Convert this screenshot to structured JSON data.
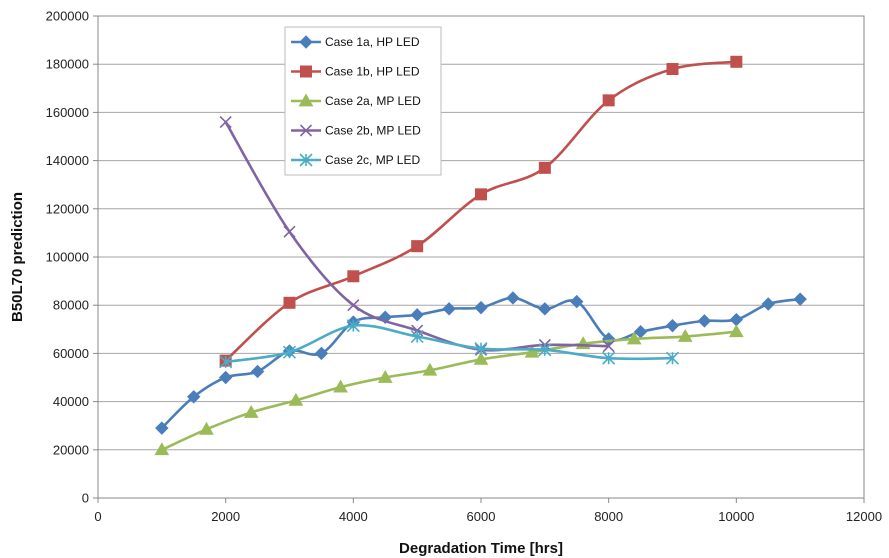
{
  "chart_data": {
    "type": "line",
    "title": "",
    "xlabel": "Degradation Time [hrs]",
    "ylabel": "B50L70 prediction",
    "xlim": [
      0,
      12000
    ],
    "ylim": [
      0,
      200000
    ],
    "x_ticks": [
      0,
      2000,
      4000,
      6000,
      8000,
      10000,
      12000
    ],
    "y_ticks": [
      0,
      20000,
      40000,
      60000,
      80000,
      100000,
      120000,
      140000,
      160000,
      180000,
      200000
    ],
    "grid": "horizontal",
    "legend_position": "top-left",
    "series": [
      {
        "name": "Case 1a, HP LED",
        "color": "#4a7ebb",
        "marker": "diamond",
        "points": [
          [
            1000,
            29000
          ],
          [
            1500,
            42000
          ],
          [
            2000,
            50000
          ],
          [
            2500,
            52500
          ],
          [
            3000,
            61000
          ],
          [
            3500,
            60000
          ],
          [
            4000,
            73000
          ],
          [
            4500,
            75000
          ],
          [
            5000,
            76000
          ],
          [
            5500,
            78500
          ],
          [
            6000,
            79000
          ],
          [
            6500,
            83000
          ],
          [
            7000,
            78500
          ],
          [
            7500,
            81500
          ],
          [
            8000,
            66000
          ],
          [
            8500,
            69000
          ],
          [
            9000,
            71500
          ],
          [
            9500,
            73500
          ],
          [
            10000,
            74000
          ],
          [
            10500,
            80500
          ],
          [
            11000,
            82500
          ]
        ]
      },
      {
        "name": "Case 1b, HP LED",
        "color": "#c0504d",
        "marker": "square",
        "points": [
          [
            2000,
            57000
          ],
          [
            3000,
            81000
          ],
          [
            4000,
            92000
          ],
          [
            5000,
            104500
          ],
          [
            6000,
            126000
          ],
          [
            7000,
            137000
          ],
          [
            8000,
            165000
          ],
          [
            9000,
            178000
          ],
          [
            10000,
            181000
          ]
        ]
      },
      {
        "name": "Case 2a, MP LED",
        "color": "#9bbb59",
        "marker": "triangle",
        "points": [
          [
            1000,
            20000
          ],
          [
            1700,
            28500
          ],
          [
            2400,
            35500
          ],
          [
            3100,
            40500
          ],
          [
            3800,
            46000
          ],
          [
            4500,
            50000
          ],
          [
            5200,
            53000
          ],
          [
            6000,
            57500
          ],
          [
            6800,
            60500
          ],
          [
            7600,
            64000
          ],
          [
            8400,
            66000
          ],
          [
            9200,
            67000
          ],
          [
            10000,
            69000
          ]
        ]
      },
      {
        "name": "Case 2b, MP LED",
        "color": "#8064a2",
        "marker": "x",
        "points": [
          [
            2000,
            156000
          ],
          [
            3000,
            110500
          ],
          [
            4000,
            80000
          ],
          [
            5000,
            69500
          ],
          [
            6000,
            61500
          ],
          [
            7000,
            63500
          ],
          [
            8000,
            63000
          ]
        ]
      },
      {
        "name": "Case 2c, MP LED",
        "color": "#4bacc6",
        "marker": "star",
        "points": [
          [
            2000,
            56500
          ],
          [
            3000,
            60500
          ],
          [
            4000,
            71500
          ],
          [
            5000,
            67000
          ],
          [
            6000,
            62000
          ],
          [
            7000,
            61500
          ],
          [
            8000,
            58000
          ],
          [
            9000,
            58000
          ]
        ]
      }
    ]
  }
}
